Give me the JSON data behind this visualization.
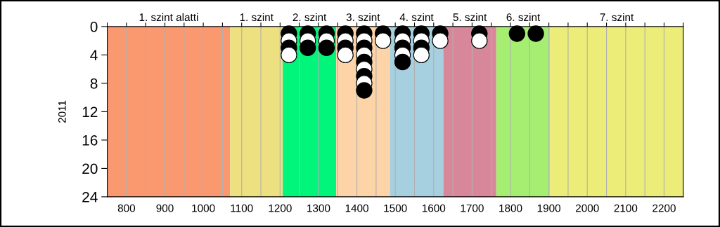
{
  "chart_data": {
    "type": "scatter",
    "ylabel": "2011",
    "xlim": [
      750,
      2250
    ],
    "ylim": [
      24,
      0
    ],
    "xticks": [
      {
        "value": 750,
        "label": null
      },
      800,
      {
        "value": 850,
        "label": null
      },
      900,
      {
        "value": 950,
        "label": null
      },
      1000,
      {
        "value": 1050,
        "label": null
      },
      1100,
      {
        "value": 1150,
        "label": null
      },
      1200,
      {
        "value": 1250,
        "label": null
      },
      1300,
      {
        "value": 1350,
        "label": null
      },
      1400,
      {
        "value": 1450,
        "label": null
      },
      1500,
      {
        "value": 1550,
        "label": null
      },
      1600,
      {
        "value": 1650,
        "label": null
      },
      1700,
      {
        "value": 1750,
        "label": null
      },
      1800,
      {
        "value": 1850,
        "label": null
      },
      1900,
      {
        "value": 1950,
        "label": null
      },
      2000,
      {
        "value": 2050,
        "label": null
      },
      2100,
      {
        "value": 2150,
        "label": null
      },
      2200,
      {
        "value": 2250,
        "label": null
      }
    ],
    "yticks": [
      0,
      4,
      8,
      12,
      16,
      20,
      24
    ],
    "grid": "x",
    "marker": "circle",
    "legend": false,
    "bands": [
      {
        "axis": "x",
        "from": 750,
        "to": 1070,
        "label": "1. szint alatti",
        "color": "#fa9870"
      },
      {
        "axis": "x",
        "from": 1070,
        "to": 1207,
        "label": "1. szint",
        "color": "#ece080"
      },
      {
        "axis": "x",
        "from": 1207,
        "to": 1346,
        "label": "2. szint",
        "color": "#00f57a"
      },
      {
        "axis": "x",
        "from": 1346,
        "to": 1486,
        "label": "3. szint",
        "color": "#fdd3a8"
      },
      {
        "axis": "x",
        "from": 1486,
        "to": 1625,
        "label": "4. szint",
        "color": "#a6d0e0"
      },
      {
        "axis": "x",
        "from": 1625,
        "to": 1763,
        "label": "5. szint",
        "color": "#d8879a"
      },
      {
        "axis": "x",
        "from": 1763,
        "to": 1903,
        "label": "6. szint",
        "color": "#a6ee72"
      },
      {
        "axis": "x",
        "from": 1903,
        "to": 2250,
        "label": "7. szint",
        "color": "#ecec78"
      }
    ],
    "series": [
      {
        "color": "#000000",
        "x": [
          1223,
          1223,
          1272,
          1272,
          1321,
          1321,
          1370,
          1370,
          1419,
          1419,
          1419,
          1419,
          1419,
          1468,
          1519,
          1519,
          1519,
          1568,
          1568,
          1617,
          1719,
          1817,
          1866
        ],
        "values": [
          1,
          3,
          1,
          3,
          1,
          3,
          1,
          3,
          1,
          3,
          5,
          7,
          9,
          1,
          1,
          3,
          5,
          1,
          3,
          1,
          1,
          1,
          1
        ]
      },
      {
        "color": "#ffffff",
        "x": [
          1223,
          1223,
          1272,
          1321,
          1370,
          1370,
          1419,
          1419,
          1419,
          1419,
          1468,
          1519,
          1519,
          1568,
          1568,
          1617,
          1719
        ],
        "values": [
          2,
          4,
          2,
          2,
          2,
          4,
          2,
          4,
          6,
          8,
          2,
          2,
          4,
          2,
          4,
          2,
          2
        ]
      }
    ]
  }
}
